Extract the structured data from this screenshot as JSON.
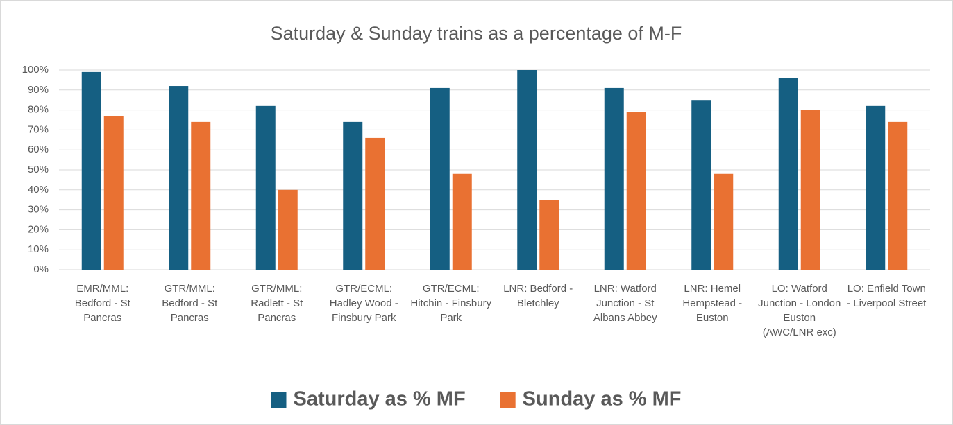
{
  "chart_data": {
    "type": "bar",
    "title": "Saturday & Sunday trains as a percentage of M-F",
    "categories": [
      "EMR/MML: Bedford - St Pancras",
      "GTR/MML: Bedford - St Pancras",
      "GTR/MML: Radlett - St Pancras",
      "GTR/ECML: Hadley Wood - Finsbury Park",
      "GTR/ECML: Hitchin - Finsbury Park",
      "LNR: Bedford - Bletchley",
      "LNR: Watford Junction - St Albans Abbey",
      "LNR: Hemel Hempstead - Euston",
      "LO: Watford Junction - London Euston (AWC/LNR exc)",
      "LO: Enfield Town - Liverpool Street"
    ],
    "series": [
      {
        "name": "Saturday as % MF",
        "color": "#155f82",
        "values": [
          99,
          92,
          82,
          74,
          91,
          100,
          91,
          85,
          96,
          82
        ]
      },
      {
        "name": "Sunday as % MF",
        "color": "#e97132",
        "values": [
          77,
          74,
          40,
          66,
          48,
          35,
          79,
          48,
          80,
          74
        ]
      }
    ],
    "ylim": [
      0,
      100
    ],
    "yticks": [
      {
        "value": 0,
        "label": "0%"
      },
      {
        "value": 10,
        "label": "10%"
      },
      {
        "value": 20,
        "label": "20%"
      },
      {
        "value": 30,
        "label": "30%"
      },
      {
        "value": 40,
        "label": "40%"
      },
      {
        "value": 50,
        "label": "50%"
      },
      {
        "value": 60,
        "label": "60%"
      },
      {
        "value": 70,
        "label": "70%"
      },
      {
        "value": 80,
        "label": "80%"
      },
      {
        "value": 90,
        "label": "90%"
      },
      {
        "value": 100,
        "label": "100%"
      }
    ],
    "grid": true,
    "legend": "bottom"
  }
}
